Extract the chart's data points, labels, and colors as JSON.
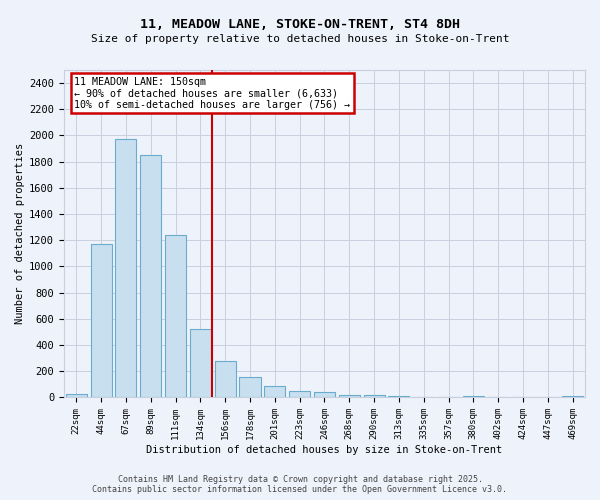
{
  "title1": "11, MEADOW LANE, STOKE-ON-TRENT, ST4 8DH",
  "title2": "Size of property relative to detached houses in Stoke-on-Trent",
  "xlabel": "Distribution of detached houses by size in Stoke-on-Trent",
  "ylabel": "Number of detached properties",
  "footer1": "Contains HM Land Registry data © Crown copyright and database right 2025.",
  "footer2": "Contains public sector information licensed under the Open Government Licence v3.0.",
  "bin_labels": [
    "22sqm",
    "44sqm",
    "67sqm",
    "89sqm",
    "111sqm",
    "134sqm",
    "156sqm",
    "178sqm",
    "201sqm",
    "223sqm",
    "246sqm",
    "268sqm",
    "290sqm",
    "313sqm",
    "335sqm",
    "357sqm",
    "380sqm",
    "402sqm",
    "424sqm",
    "447sqm",
    "469sqm"
  ],
  "bar_values": [
    25,
    1170,
    1970,
    1850,
    1240,
    520,
    275,
    155,
    90,
    48,
    38,
    20,
    20,
    15,
    0,
    0,
    15,
    0,
    0,
    0,
    15
  ],
  "bar_color": "#c8dff0",
  "bar_edge_color": "#6aacce",
  "background_color": "#eef2fa",
  "grid_color": "#c8d0e0",
  "vline_x_index": 5.45,
  "vline_color": "#cc0000",
  "annotation_line1": "11 MEADOW LANE: 150sqm",
  "annotation_line2": "← 90% of detached houses are smaller (6,633)",
  "annotation_line3": "10% of semi-detached houses are larger (756) →",
  "annotation_box_color": "#ffffff",
  "annotation_box_edge": "#cc0000",
  "ylim": [
    0,
    2500
  ],
  "yticks": [
    0,
    200,
    400,
    600,
    800,
    1000,
    1200,
    1400,
    1600,
    1800,
    2000,
    2200,
    2400
  ]
}
